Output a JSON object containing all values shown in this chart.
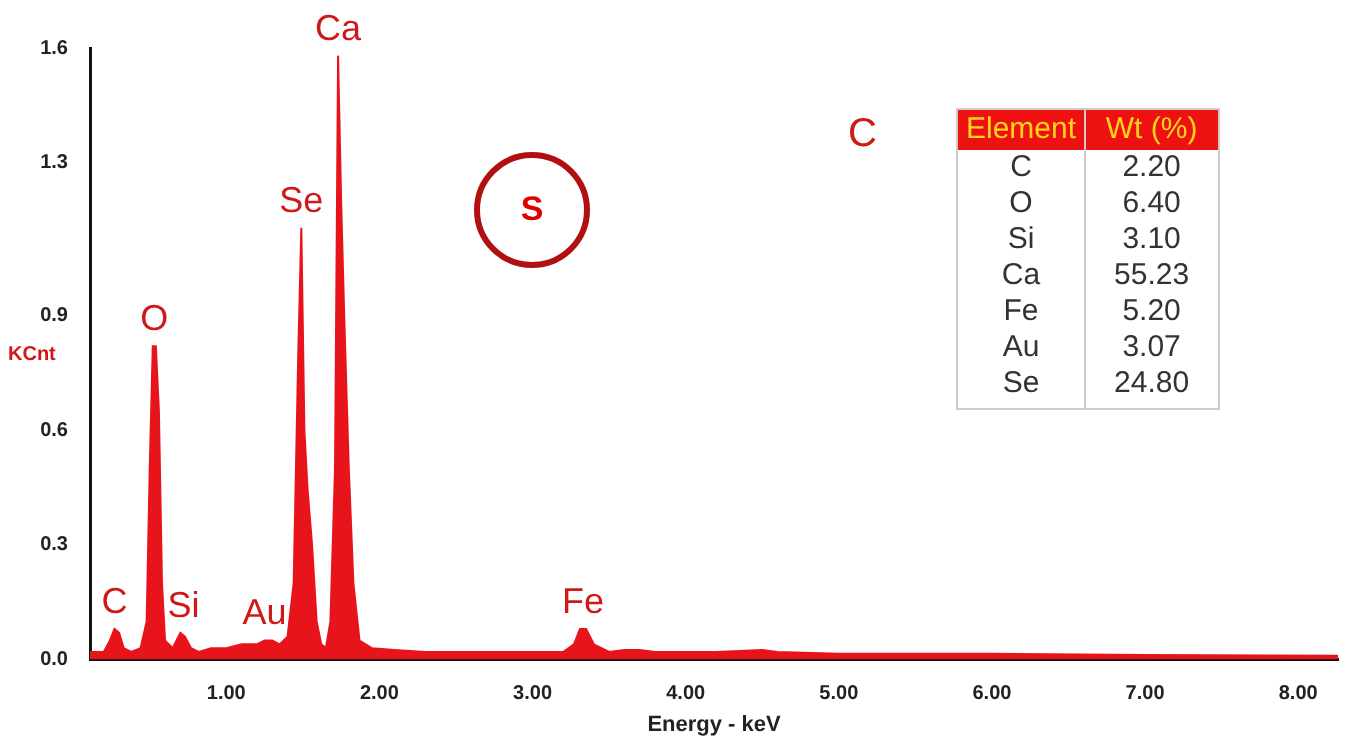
{
  "chart_data": {
    "type": "area",
    "xlabel": "Energy - keV",
    "ylabel": "KCnt",
    "x": [
      0.11,
      0.2,
      0.24,
      0.27,
      0.3,
      0.33,
      0.38,
      0.44,
      0.48,
      0.5,
      0.52,
      0.54,
      0.56,
      0.58,
      0.6,
      0.65,
      0.7,
      0.73,
      0.77,
      0.82,
      0.9,
      1.0,
      1.1,
      1.2,
      1.25,
      1.3,
      1.35,
      1.4,
      1.44,
      1.47,
      1.49,
      1.51,
      1.53,
      1.56,
      1.59,
      1.62,
      1.65,
      1.68,
      1.71,
      1.73,
      1.75,
      1.77,
      1.8,
      1.83,
      1.87,
      1.95,
      2.1,
      2.3,
      2.6,
      2.9,
      3.2,
      3.27,
      3.31,
      3.35,
      3.4,
      3.5,
      3.6,
      3.7,
      3.8,
      4.2,
      4.5,
      4.6,
      5.0,
      6.0,
      7.0,
      8.26
    ],
    "series": [
      {
        "color": "#e8141b",
        "values": [
          0.02,
          0.02,
          0.05,
          0.08,
          0.07,
          0.03,
          0.02,
          0.03,
          0.1,
          0.5,
          0.82,
          0.82,
          0.65,
          0.2,
          0.05,
          0.03,
          0.07,
          0.06,
          0.03,
          0.02,
          0.03,
          0.03,
          0.04,
          0.04,
          0.05,
          0.05,
          0.04,
          0.06,
          0.2,
          0.8,
          1.13,
          0.6,
          0.45,
          0.3,
          0.1,
          0.04,
          0.03,
          0.1,
          0.5,
          1.58,
          1.2,
          0.9,
          0.5,
          0.2,
          0.05,
          0.03,
          0.025,
          0.02,
          0.02,
          0.02,
          0.02,
          0.04,
          0.08,
          0.08,
          0.04,
          0.02,
          0.025,
          0.025,
          0.02,
          0.02,
          0.025,
          0.02,
          0.015,
          0.015,
          0.012,
          0.01
        ]
      }
    ],
    "xlim": [
      0.11,
      8.26
    ],
    "xticks": [
      {
        "value": 1,
        "label": "1.00"
      },
      {
        "value": 2,
        "label": "2.00"
      },
      {
        "value": 3,
        "label": "3.00"
      },
      {
        "value": 4,
        "label": "4.00"
      },
      {
        "value": 5,
        "label": "5.00"
      },
      {
        "value": 6,
        "label": "6.00"
      },
      {
        "value": 7,
        "label": "7.00"
      },
      {
        "value": 8,
        "label": "8.00"
      }
    ],
    "ylim": [
      0,
      1.6
    ],
    "yticks": [
      {
        "value": 0,
        "label": "0.0"
      },
      0.3,
      0.6,
      0.9,
      1.3,
      1.6
    ],
    "grid": false,
    "legend": false,
    "annotations": [
      {
        "text": "C",
        "x": 0.27,
        "y": 0.08
      },
      {
        "text": "O",
        "x": 0.53,
        "y": 0.82
      },
      {
        "text": "Si",
        "x": 0.72,
        "y": 0.07
      },
      {
        "text": "Au",
        "x": 1.25,
        "y": 0.05
      },
      {
        "text": "Se",
        "x": 1.49,
        "y": 1.13
      },
      {
        "text": "Ca",
        "x": 1.73,
        "y": 1.58
      },
      {
        "text": "Fe",
        "x": 3.33,
        "y": 0.08
      },
      "C",
      "S",
      "Element",
      "Wt (%)",
      "C",
      "2.20",
      "O",
      "6.40",
      "Si",
      "3.10",
      "Ca",
      "55.23",
      "Fe",
      "5.20",
      "Au",
      "3.07",
      "Se",
      "24.80"
    ]
  }
}
